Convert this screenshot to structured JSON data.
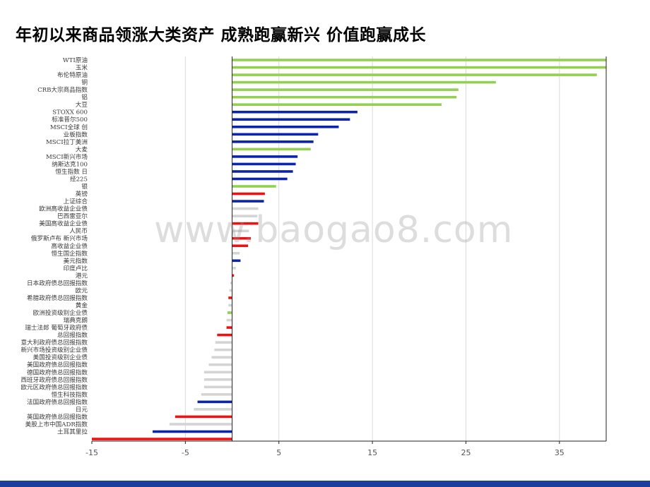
{
  "slide": {
    "title": "年初以来商品领涨大类资产 成熟跑赢新兴 价值跑赢成长",
    "watermark": "www.baogao8.com"
  },
  "colors": {
    "green": "#92d050",
    "blue": "#0a24b0",
    "red": "#ee1111",
    "gray": "#d4d4d4",
    "gridline": "#d9d9d9",
    "axis": "#222222",
    "footer": "#1a3f9c"
  },
  "chart_data": {
    "type": "bar",
    "orientation": "horizontal",
    "title": "",
    "xlabel": "",
    "ylabel": "",
    "xlim": [
      -15,
      40
    ],
    "xticks": [
      -15,
      -5,
      5,
      15,
      25,
      35
    ],
    "grid": true,
    "legend": "none",
    "categories": [
      "WTI原油",
      "玉米",
      "布伦特原油",
      "铜",
      "CRB大宗商品指数",
      "铝",
      "大豆",
      "STOXX 600",
      "标准普尔500",
      "MSCI全球 创",
      "业板指数",
      "MSCI拉丁美洲",
      "大麦",
      "MSCI新兴市场",
      "纳斯达克100",
      "恒生指数 日",
      "经225",
      "银",
      "英镑",
      "上证综合",
      "欧洲高收益企业债",
      "巴西雷亚尔",
      "美国高收益企业债",
      "人民币",
      "俄罗斯卢布 新兴市场",
      "高收益企业债",
      "恒生国企指数",
      "美元指数",
      "印度卢比",
      "港元",
      "日本政府债总回报指数",
      "欧元",
      "希腊政府债总回报指数",
      "黄金",
      "欧洲投资级别企业债",
      "瑞典克朗",
      "瑞士法郎 葡萄牙政府债",
      "总回报指数",
      "意大利政府债总回报指数",
      "新兴市场投资级别企业债",
      "美国投资级别企业债",
      "美国政府债总回报指数",
      "德国政府债总回报指数",
      "西班牙政府债总回报指数",
      "欧元区政府债总回报指数",
      "恒生科技指数",
      "法国政府债总回报指数",
      "日元",
      "英国政府债总回报指数",
      "美股上市中国ADR指数",
      "土耳其里拉"
    ],
    "values": [
      40.0,
      40.0,
      39.0,
      28.2,
      24.2,
      24.0,
      22.4,
      13.4,
      12.6,
      11.4,
      9.2,
      8.7,
      8.4,
      7.0,
      6.8,
      6.5,
      5.9,
      4.7,
      3.5,
      3.4,
      2.8,
      2.7,
      2.8,
      1.8,
      2.0,
      1.7,
      0.8,
      0.9,
      0.4,
      0.2,
      -0.2,
      -0.3,
      -0.4,
      -0.4,
      -0.5,
      -0.6,
      -0.6,
      -1.6,
      -1.8,
      -1.9,
      -2.2,
      -2.5,
      -3.0,
      -3.0,
      -3.0,
      -3.3,
      -3.7,
      -4.1,
      -6.1,
      -6.7,
      -8.5
    ],
    "bar_colors": [
      "green",
      "green",
      "green",
      "green",
      "green",
      "green",
      "green",
      "blue",
      "blue",
      "blue",
      "blue",
      "blue",
      "green",
      "blue",
      "blue",
      "blue",
      "blue",
      "green",
      "red",
      "blue",
      "gray",
      "gray",
      "red",
      "gray",
      "red",
      "red",
      "gray",
      "blue",
      "gray",
      "red",
      "gray",
      "gray",
      "red",
      "gray",
      "green",
      "gray",
      "red",
      "red",
      "gray",
      "gray",
      "gray",
      "gray",
      "gray",
      "gray",
      "gray",
      "gray",
      "blue",
      "gray",
      "red",
      "gray",
      "blue"
    ],
    "extra_bar": {
      "value": -15.0,
      "color": "red"
    }
  }
}
